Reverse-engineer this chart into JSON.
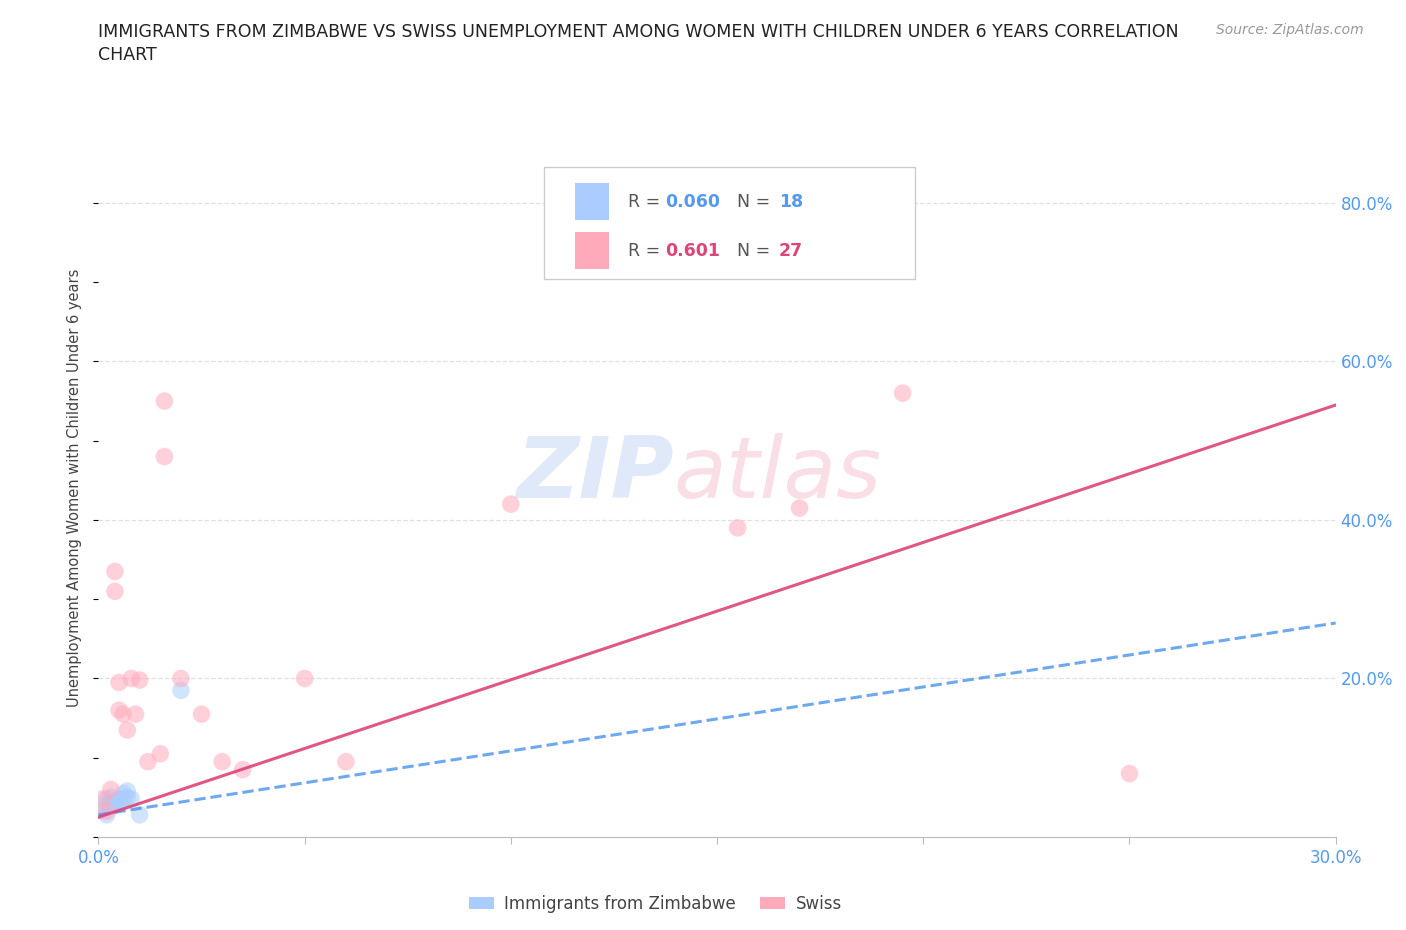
{
  "title_line1": "IMMIGRANTS FROM ZIMBABWE VS SWISS UNEMPLOYMENT AMONG WOMEN WITH CHILDREN UNDER 6 YEARS CORRELATION",
  "title_line2": "CHART",
  "source": "Source: ZipAtlas.com",
  "ylabel": "Unemployment Among Women with Children Under 6 years",
  "xlim": [
    0.0,
    0.3
  ],
  "ylim": [
    0.0,
    0.88
  ],
  "xticks": [
    0.0,
    0.05,
    0.1,
    0.15,
    0.2,
    0.25,
    0.3
  ],
  "yticks_right": [
    0.0,
    0.2,
    0.4,
    0.6,
    0.8
  ],
  "background_color": "#ffffff",
  "grid_color": "#e0e0e0",
  "blue_dots_x": [
    0.001,
    0.002,
    0.002,
    0.002,
    0.003,
    0.003,
    0.003,
    0.004,
    0.004,
    0.005,
    0.005,
    0.006,
    0.006,
    0.007,
    0.007,
    0.008,
    0.01,
    0.02
  ],
  "blue_dots_y": [
    0.033,
    0.028,
    0.04,
    0.048,
    0.038,
    0.042,
    0.05,
    0.04,
    0.045,
    0.042,
    0.048,
    0.048,
    0.055,
    0.05,
    0.058,
    0.048,
    0.028,
    0.185
  ],
  "pink_dots_x": [
    0.001,
    0.002,
    0.003,
    0.004,
    0.004,
    0.005,
    0.005,
    0.006,
    0.007,
    0.008,
    0.009,
    0.01,
    0.012,
    0.015,
    0.016,
    0.016,
    0.02,
    0.025,
    0.03,
    0.035,
    0.05,
    0.06,
    0.1,
    0.155,
    0.17,
    0.195,
    0.25
  ],
  "pink_dots_y": [
    0.048,
    0.032,
    0.06,
    0.335,
    0.31,
    0.16,
    0.195,
    0.155,
    0.135,
    0.2,
    0.155,
    0.198,
    0.095,
    0.105,
    0.55,
    0.48,
    0.2,
    0.155,
    0.095,
    0.085,
    0.2,
    0.095,
    0.42,
    0.39,
    0.415,
    0.56,
    0.08
  ],
  "blue_line_x": [
    0.0,
    0.3
  ],
  "blue_line_y": [
    0.028,
    0.27
  ],
  "pink_line_x": [
    0.0,
    0.3
  ],
  "pink_line_y": [
    0.025,
    0.545
  ],
  "blue_color": "#aaccff",
  "blue_line_color": "#5599ee",
  "pink_color": "#ffaabb",
  "pink_line_color": "#dd4477",
  "legend_R_label_blue": "R = ",
  "legend_R_val_blue": "0.060",
  "legend_N_label_blue": "  N = ",
  "legend_N_val_blue": "18",
  "legend_R_label_pink": "R = ",
  "legend_R_val_pink": "0.601",
  "legend_N_label_pink": "  N = ",
  "legend_N_val_pink": "27",
  "dot_size": 160,
  "dot_alpha": 0.55,
  "figsize": [
    14.06,
    9.3
  ],
  "dpi": 100
}
